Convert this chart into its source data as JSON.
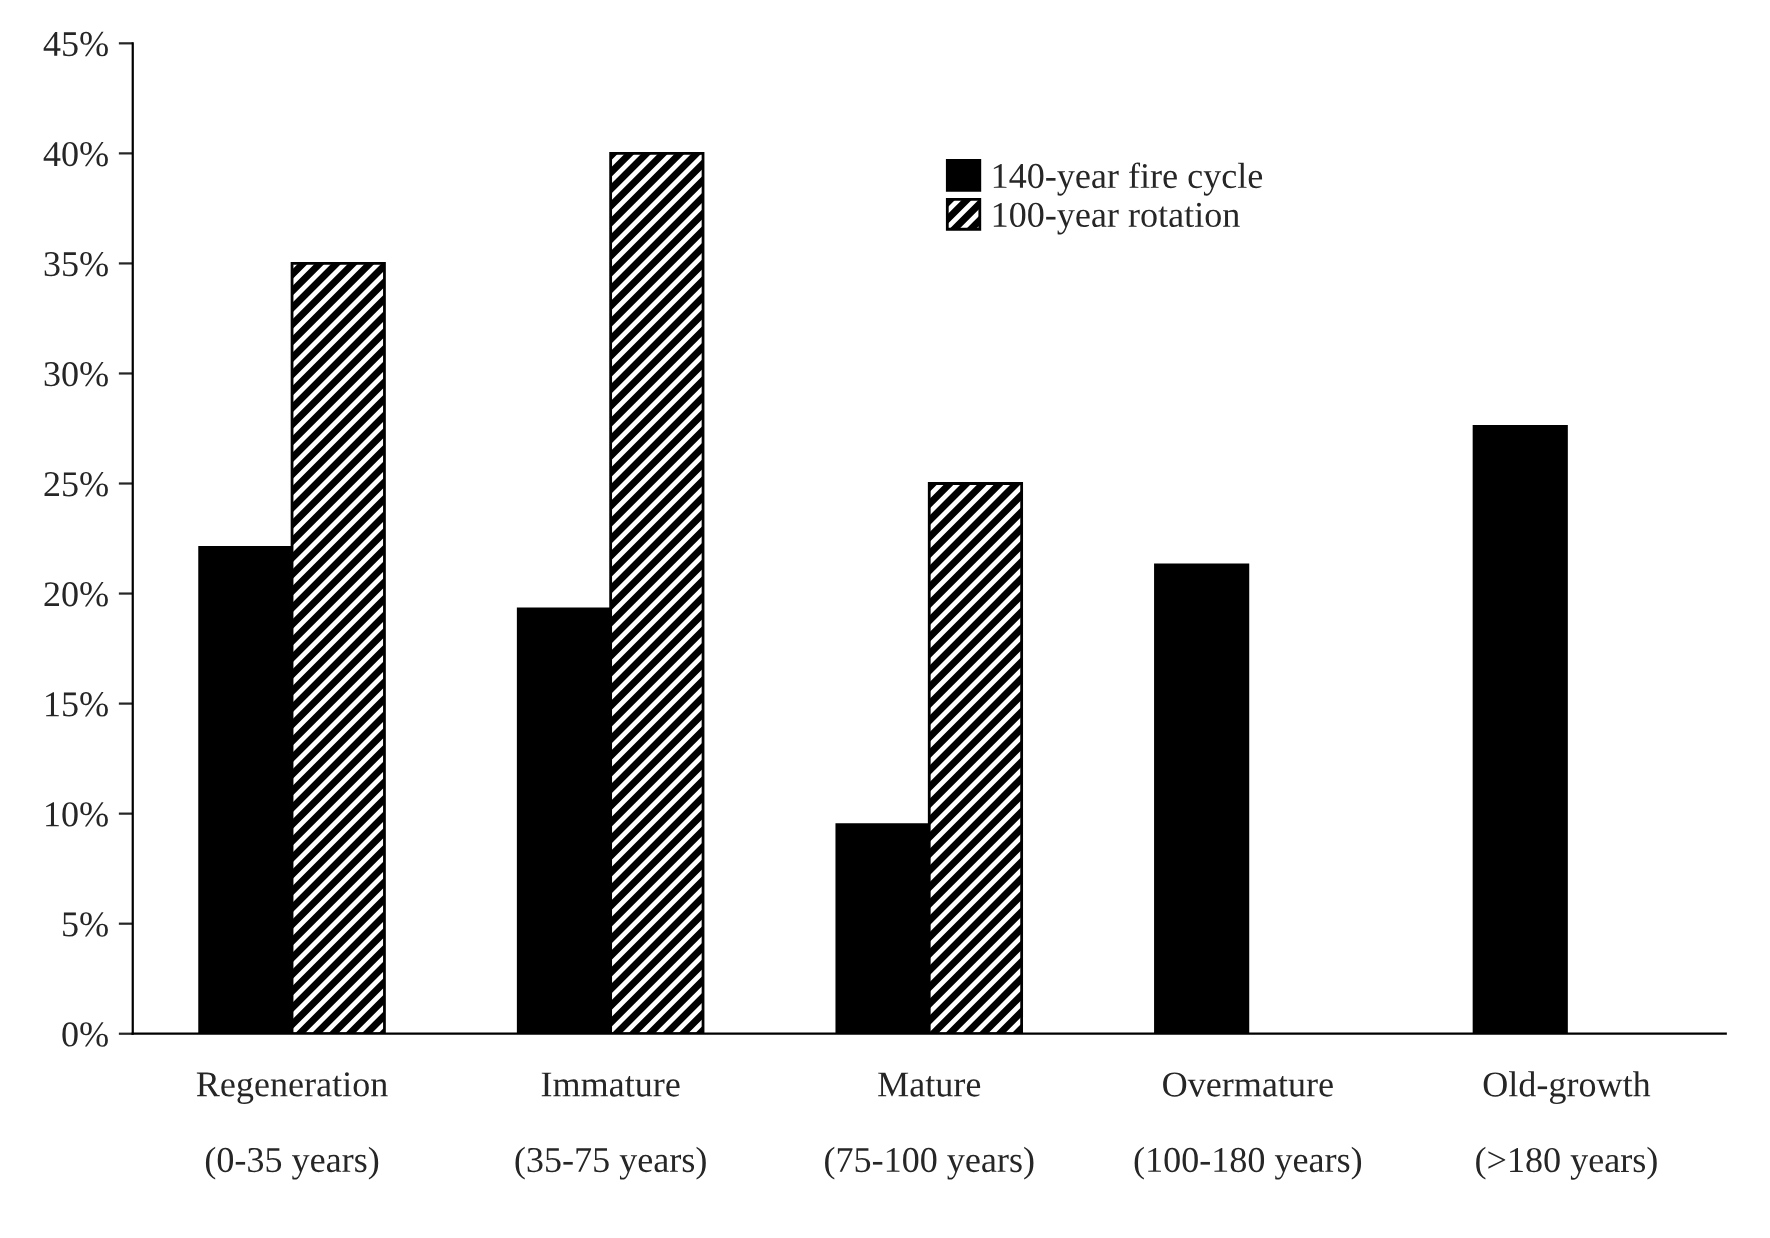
{
  "chart_data": {
    "type": "bar",
    "categories": [
      "Regeneration\n\n(0-35 years)",
      "Immature\n\n(35-75 years)",
      "Mature\n\n(75-100 years)",
      "Overmature\n\n(100-180 years)",
      "Old-growth\n\n(>180 years)"
    ],
    "series": [
      {
        "name": "140-year fire cycle",
        "color": "#000000",
        "values": [
          22.1,
          19.3,
          9.5,
          21.3,
          27.6
        ]
      },
      {
        "name": "100-year rotation",
        "color": "#000000",
        "values": [
          35,
          40,
          25,
          null,
          null
        ]
      }
    ],
    "ylim": [
      0,
      45
    ],
    "yticks": [
      {
        "value": 0,
        "label": "0%"
      },
      {
        "value": 5,
        "label": "5%"
      },
      {
        "value": 10,
        "label": "10%"
      },
      {
        "value": 15,
        "label": "15%"
      },
      {
        "value": 20,
        "label": "20%"
      },
      {
        "value": 25,
        "label": "25%"
      },
      {
        "value": 30,
        "label": "30%"
      },
      {
        "value": 35,
        "label": "35%"
      },
      {
        "value": 40,
        "label": "40%"
      },
      {
        "value": 45,
        "label": "45%"
      }
    ],
    "grid": false,
    "legend": "top"
  }
}
